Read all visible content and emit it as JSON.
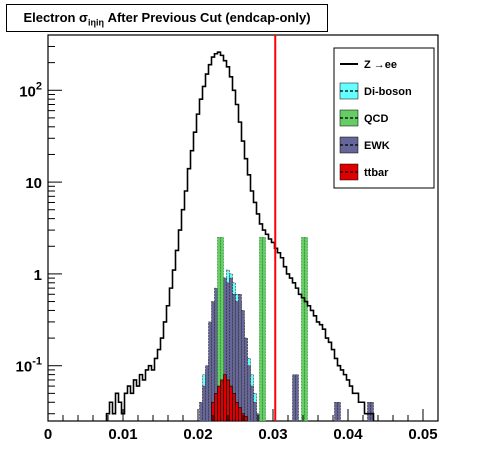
{
  "chart_data": {
    "type": "histogram",
    "title": {
      "prefix": "Electron σ",
      "subscript": "iηiη",
      "suffix": " After Previous Cut (endcap-only)"
    },
    "xlim": [
      0,
      0.052
    ],
    "ylim": [
      0.025,
      400
    ],
    "ylog": true,
    "x_tick_labels": [
      "0",
      "0.01",
      "0.02",
      "0.03",
      "0.04",
      "0.05"
    ],
    "x_ticks": [
      0,
      0.01,
      0.02,
      0.03,
      0.04,
      0.05
    ],
    "y_tick_labels": [
      {
        "value": 0.1,
        "base": "10",
        "exp": "-1"
      },
      {
        "value": 1,
        "base": "1",
        "exp": ""
      },
      {
        "value": 10,
        "base": "10",
        "exp": ""
      },
      {
        "value": 100,
        "base": "10",
        "exp": "2"
      }
    ],
    "cut_line": {
      "x": 0.0303,
      "color": "#ff0000"
    },
    "legend": {
      "placement": "top-right",
      "entries": [
        {
          "label": "Z →ee",
          "style": "line",
          "color": "#000000"
        },
        {
          "label": "Di-boson",
          "style": "fill",
          "color": "#66ffff"
        },
        {
          "label": "QCD",
          "style": "fill",
          "color": "#66cc66"
        },
        {
          "label": "EWK",
          "style": "fill",
          "color": "#666699"
        },
        {
          "label": "ttbar",
          "style": "fill",
          "color": "#dd0000"
        }
      ]
    },
    "series": [
      {
        "name": "Z →ee",
        "kind": "step",
        "color": "#000000",
        "x": [
          0.0078,
          0.0082,
          0.0086,
          0.009,
          0.0094,
          0.0098,
          0.0102,
          0.0106,
          0.011,
          0.0114,
          0.0118,
          0.0122,
          0.0126,
          0.013,
          0.0134,
          0.0138,
          0.0142,
          0.0146,
          0.015,
          0.0154,
          0.0158,
          0.0162,
          0.0166,
          0.017,
          0.0174,
          0.0178,
          0.0182,
          0.0186,
          0.019,
          0.0194,
          0.0198,
          0.0202,
          0.0206,
          0.021,
          0.0214,
          0.0218,
          0.0222,
          0.0226,
          0.023,
          0.0234,
          0.0238,
          0.0242,
          0.0246,
          0.025,
          0.0254,
          0.0258,
          0.0262,
          0.0266,
          0.027,
          0.0274,
          0.0278,
          0.0282,
          0.0286,
          0.029,
          0.0294,
          0.0298,
          0.0302,
          0.0306,
          0.031,
          0.0314,
          0.0318,
          0.0322,
          0.0326,
          0.033,
          0.0334,
          0.0338,
          0.0342,
          0.0346,
          0.035,
          0.0354,
          0.0358,
          0.0362,
          0.0366,
          0.037,
          0.0374,
          0.0378,
          0.0382,
          0.0386,
          0.039,
          0.0394,
          0.0398,
          0.0402,
          0.0406,
          0.041,
          0.0414,
          0.0418,
          0.0422,
          0.0426,
          0.043
        ],
        "values": [
          0.03,
          0.04,
          0.03,
          0.05,
          0.04,
          0.03,
          0.05,
          0.06,
          0.05,
          0.07,
          0.06,
          0.08,
          0.07,
          0.09,
          0.1,
          0.09,
          0.12,
          0.15,
          0.2,
          0.3,
          0.45,
          0.7,
          1.1,
          1.8,
          3,
          5,
          8,
          14,
          22,
          35,
          55,
          80,
          110,
          150,
          190,
          230,
          250,
          260,
          240,
          210,
          180,
          140,
          100,
          70,
          45,
          28,
          18,
          12,
          8,
          6,
          4.5,
          3.5,
          3,
          2.7,
          2.4,
          2.2,
          1.9,
          1.7,
          1.5,
          1.2,
          1.0,
          0.9,
          0.8,
          0.7,
          0.6,
          0.55,
          0.5,
          0.45,
          0.4,
          0.35,
          0.3,
          0.28,
          0.25,
          0.2,
          0.18,
          0.15,
          0.12,
          0.1,
          0.09,
          0.08,
          0.07,
          0.06,
          0.05,
          0.05,
          0.04,
          0.04,
          0.03,
          0.03,
          0.03
        ]
      },
      {
        "name": "Di-boson",
        "kind": "fill",
        "color": "#66ffff",
        "x": [
          0.0206,
          0.021,
          0.0214,
          0.0218,
          0.0222,
          0.0226,
          0.023,
          0.0234,
          0.0238,
          0.0242,
          0.0246,
          0.025,
          0.0254,
          0.0258,
          0.0262,
          0.0266,
          0.027,
          0.0274
        ],
        "values": [
          0.08,
          0.09,
          0.12,
          0.2,
          0.35,
          0.5,
          0.7,
          0.9,
          1.1,
          1.0,
          0.8,
          0.6,
          0.5,
          0.3,
          0.2,
          0.12,
          0.08,
          0.05
        ]
      },
      {
        "name": "QCD",
        "kind": "fill",
        "color": "#66cc66",
        "x": [
          0.0226,
          0.023,
          0.0282,
          0.0286,
          0.0338,
          0.0342
        ],
        "values": [
          2.5,
          2.5,
          2.5,
          2.5,
          2.5,
          2.5
        ]
      },
      {
        "name": "EWK",
        "kind": "fill",
        "color": "#666699",
        "x": [
          0.0202,
          0.0206,
          0.021,
          0.0214,
          0.0218,
          0.0222,
          0.0226,
          0.023,
          0.0234,
          0.0238,
          0.0242,
          0.0246,
          0.025,
          0.0254,
          0.0258,
          0.0262,
          0.0266,
          0.027,
          0.0274,
          0.0278,
          0.0326,
          0.033,
          0.0382,
          0.0386,
          0.0426,
          0.043
        ],
        "values": [
          0.04,
          0.06,
          0.1,
          0.3,
          0.5,
          0.7,
          0.7,
          0.5,
          0.9,
          0.8,
          0.9,
          0.6,
          0.5,
          0.6,
          0.4,
          0.2,
          0.1,
          0.06,
          0.04,
          0.03,
          0.08,
          0.08,
          0.04,
          0.04,
          0.04,
          0.04
        ]
      },
      {
        "name": "ttbar",
        "kind": "fill",
        "color": "#dd0000",
        "x": [
          0.0218,
          0.0222,
          0.0226,
          0.023,
          0.0234,
          0.0238,
          0.0242,
          0.0246,
          0.025,
          0.0254,
          0.0258,
          0.0262
        ],
        "values": [
          0.04,
          0.05,
          0.06,
          0.07,
          0.08,
          0.07,
          0.06,
          0.05,
          0.04,
          0.035,
          0.03,
          0.028
        ]
      }
    ]
  }
}
